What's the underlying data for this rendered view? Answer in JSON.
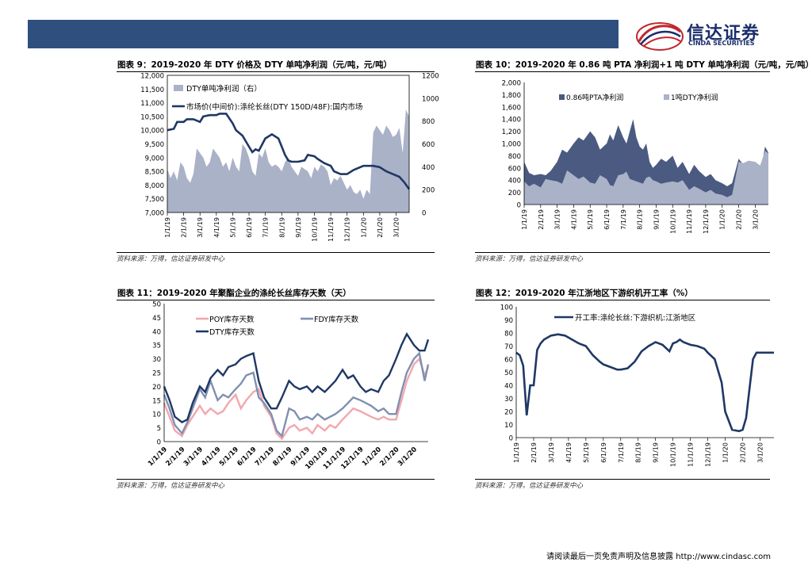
{
  "header": {
    "logo_cn": "信达证券",
    "logo_en": "CINDA SECURITIES"
  },
  "footer": {
    "text": "请阅读最后一页免责声明及信息披露 http://www.cindasc.com"
  },
  "source_text": "资料来源：万得，信达证券研发中心",
  "colors": {
    "header_bar": "#2f4f7f",
    "navy": "#1f3864",
    "bar_grey": "#aab2c8",
    "pta_dark": "#4a5a80",
    "poy_pink": "#f3a7ad",
    "fdy_grey": "#8090b0",
    "logo_red": "#c0282d"
  },
  "chart_data": [
    {
      "id": "fig9",
      "type": "area",
      "title": "图表 9：2019-2020 年 DTY 价格及 DTY 单吨净利润（元/吨，元/吨）",
      "left_ticks": [
        "12,000",
        "11,500",
        "11,000",
        "10,500",
        "10,000",
        "9,500",
        "9,000",
        "8,500",
        "8,000",
        "7,500",
        "7,000"
      ],
      "right_ticks": [
        "1200",
        "1000",
        "800",
        "600",
        "400",
        "200",
        "0"
      ],
      "ylim_left": [
        7000,
        12000
      ],
      "ylim_right": [
        0,
        1200
      ],
      "x_ticks": [
        "1/1/19",
        "2/1/19",
        "3/1/19",
        "4/1/19",
        "5/1/19",
        "6/1/19",
        "7/1/19",
        "8/1/19",
        "9/1/19",
        "10/1/19",
        "11/1/19",
        "12/1/19",
        "1/1/20",
        "2/1/20",
        "3/1/20"
      ],
      "x_positions": [
        0,
        1,
        2,
        3,
        4,
        5,
        6,
        7,
        8,
        9,
        10,
        11,
        12,
        13,
        14
      ],
      "x_max": 14.8,
      "legend": [
        "DTY单吨净利润（右）",
        "市场价(中间价):涤纶长丝(DTY 150D/48F):国内市场"
      ],
      "series": [
        {
          "name": "DTY单吨净利润（右）",
          "kind": "area",
          "axis": "right",
          "x": [
            0,
            0.2,
            0.4,
            0.6,
            0.8,
            1.0,
            1.2,
            1.4,
            1.6,
            1.8,
            2.0,
            2.2,
            2.4,
            2.6,
            2.8,
            3.0,
            3.2,
            3.4,
            3.6,
            3.8,
            4.0,
            4.2,
            4.4,
            4.6,
            4.8,
            5.0,
            5.2,
            5.4,
            5.6,
            5.8,
            6.0,
            6.2,
            6.4,
            6.6,
            6.8,
            7.0,
            7.2,
            7.4,
            7.6,
            7.8,
            8.0,
            8.2,
            8.4,
            8.6,
            8.8,
            9.0,
            9.2,
            9.4,
            9.6,
            9.8,
            10.0,
            10.2,
            10.4,
            10.6,
            10.8,
            11.0,
            11.2,
            11.4,
            11.6,
            11.8,
            12.0,
            12.2,
            12.4,
            12.6,
            12.8,
            13.0,
            13.2,
            13.4,
            13.6,
            13.8,
            14.0,
            14.2,
            14.4,
            14.6,
            14.8
          ],
          "values": [
            380,
            300,
            360,
            280,
            440,
            400,
            300,
            260,
            340,
            560,
            520,
            480,
            400,
            440,
            560,
            520,
            480,
            400,
            440,
            360,
            480,
            400,
            360,
            600,
            560,
            480,
            360,
            320,
            520,
            480,
            560,
            440,
            400,
            420,
            400,
            360,
            440,
            480,
            400,
            360,
            320,
            400,
            380,
            360,
            300,
            400,
            360,
            420,
            400,
            360,
            240,
            300,
            280,
            320,
            260,
            200,
            240,
            180,
            160,
            200,
            120,
            200,
            160,
            700,
            760,
            720,
            680,
            760,
            720,
            660,
            680,
            740,
            520,
            900,
            840
          ]
        },
        {
          "name": "市场价(中间价):涤纶长丝(DTY 150D/48F):国内市场",
          "kind": "line",
          "axis": "left",
          "x": [
            0,
            0.4,
            0.6,
            1.0,
            1.2,
            1.6,
            2.0,
            2.2,
            2.6,
            3.0,
            3.2,
            3.6,
            4.0,
            4.2,
            4.6,
            5.0,
            5.2,
            5.4,
            5.6,
            6.0,
            6.4,
            6.8,
            7.0,
            7.2,
            7.4,
            7.6,
            8.0,
            8.4,
            8.6,
            9.0,
            9.2,
            9.6,
            10.0,
            10.2,
            10.6,
            11.0,
            11.4,
            12.0,
            12.6,
            13.0,
            13.4,
            13.8,
            14.2,
            14.5,
            14.8
          ],
          "values": [
            10000,
            10050,
            10300,
            10300,
            10400,
            10400,
            10300,
            10500,
            10550,
            10550,
            10600,
            10600,
            10250,
            10000,
            9800,
            9400,
            9200,
            9300,
            9250,
            9700,
            9850,
            9700,
            9400,
            9100,
            8900,
            8850,
            8850,
            8900,
            9100,
            9050,
            8950,
            8800,
            8700,
            8500,
            8400,
            8400,
            8550,
            8700,
            8700,
            8650,
            8500,
            8400,
            8300,
            8100,
            7850
          ]
        }
      ]
    },
    {
      "id": "fig10",
      "type": "area",
      "title": "图表 10：2019-2020 年 0.86 吨 PTA 净利润+1 吨 DTY 单吨净利润（元/吨，元/吨）",
      "y_ticks": [
        "2,000",
        "1,800",
        "1,600",
        "1,400",
        "1,200",
        "1,000",
        "800",
        "600",
        "400",
        "200",
        "0"
      ],
      "ylim": [
        0,
        2000
      ],
      "x_ticks": [
        "1/1/19",
        "2/1/19",
        "3/1/19",
        "4/1/19",
        "5/1/19",
        "6/1/19",
        "7/1/19",
        "8/1/19",
        "9/1/19",
        "10/1/19",
        "11/1/19",
        "12/1/19",
        "1/1/20",
        "2/1/20",
        "3/1/20"
      ],
      "x_positions": [
        0,
        1,
        2,
        3,
        4,
        5,
        6,
        7,
        8,
        9,
        10,
        11,
        12,
        13,
        14
      ],
      "x_max": 14.8,
      "legend": [
        "0.86吨PTA净利润",
        "1吨DTY净利润"
      ],
      "series": [
        {
          "name": "0.86吨PTA净利润",
          "kind": "area",
          "x": [
            0,
            0.3,
            0.6,
            1.0,
            1.3,
            1.6,
            2.0,
            2.3,
            2.6,
            3.0,
            3.3,
            3.6,
            4.0,
            4.3,
            4.6,
            5.0,
            5.2,
            5.4,
            5.7,
            6.0,
            6.2,
            6.4,
            6.6,
            6.8,
            7.0,
            7.2,
            7.4,
            7.6,
            7.8,
            8.0,
            8.3,
            8.6,
            9.0,
            9.3,
            9.6,
            10.0,
            10.3,
            10.6,
            11.0,
            11.3,
            11.6,
            12.0,
            12.3,
            12.6,
            13.0,
            13.3,
            13.6,
            14.0,
            14.3,
            14.6,
            14.8
          ],
          "values": [
            700,
            520,
            480,
            500,
            480,
            550,
            700,
            900,
            850,
            1000,
            1100,
            1050,
            1200,
            1100,
            900,
            1000,
            1150,
            1050,
            1300,
            1100,
            1000,
            1200,
            1400,
            1100,
            950,
            900,
            1000,
            700,
            600,
            650,
            750,
            700,
            800,
            600,
            700,
            500,
            650,
            550,
            450,
            500,
            400,
            350,
            300,
            350,
            750,
            650,
            700,
            550,
            500,
            950,
            850
          ]
        },
        {
          "name": "1吨DTY净利润",
          "kind": "area",
          "x": [
            0,
            0.3,
            0.6,
            1.0,
            1.3,
            1.6,
            2.0,
            2.3,
            2.6,
            3.0,
            3.3,
            3.6,
            4.0,
            4.3,
            4.6,
            5.0,
            5.2,
            5.4,
            5.7,
            6.0,
            6.2,
            6.4,
            6.6,
            6.8,
            7.0,
            7.2,
            7.4,
            7.6,
            7.8,
            8.0,
            8.3,
            8.6,
            9.0,
            9.3,
            9.6,
            10.0,
            10.3,
            10.6,
            11.0,
            11.3,
            11.6,
            12.0,
            12.3,
            12.6,
            13.0,
            13.3,
            13.6,
            14.0,
            14.3,
            14.6,
            14.8
          ],
          "values": [
            380,
            300,
            340,
            280,
            420,
            400,
            380,
            340,
            560,
            480,
            420,
            460,
            360,
            340,
            480,
            420,
            320,
            300,
            480,
            500,
            540,
            420,
            400,
            380,
            360,
            340,
            440,
            460,
            400,
            380,
            340,
            360,
            380,
            360,
            400,
            240,
            300,
            260,
            200,
            240,
            180,
            160,
            120,
            160,
            700,
            680,
            720,
            700,
            640,
            880,
            840
          ]
        }
      ]
    },
    {
      "id": "fig11",
      "type": "line",
      "title": "图表 11：2019-2020 年聚酯企业的涤纶长丝库存天数（天）",
      "y_ticks": [
        "50",
        "45",
        "40",
        "35",
        "30",
        "25",
        "20",
        "15",
        "10",
        "5",
        "0"
      ],
      "ylim": [
        0,
        50
      ],
      "x_ticks": [
        "1/1/19",
        "2/1/19",
        "3/1/19",
        "4/1/19",
        "5/1/19",
        "6/1/19",
        "7/1/19",
        "8/1/19",
        "9/1/19",
        "10/1/19",
        "11/1/19",
        "12/1/19",
        "1/1/20",
        "2/1/20",
        "3/1/20"
      ],
      "x_positions": [
        0,
        1,
        2,
        3,
        4,
        5,
        6,
        7,
        8,
        9,
        10,
        11,
        12,
        13,
        14
      ],
      "x_max": 14.8,
      "legend": [
        "POY库存天数",
        "FDY库存天数",
        "DTY库存天数"
      ],
      "series": [
        {
          "name": "POY库存天数",
          "x": [
            0,
            0.3,
            0.6,
            1.0,
            1.3,
            1.6,
            2.0,
            2.3,
            2.6,
            3.0,
            3.3,
            3.6,
            4.0,
            4.3,
            4.6,
            5.0,
            5.3,
            5.6,
            6.0,
            6.3,
            6.6,
            7.0,
            7.3,
            7.6,
            8.0,
            8.3,
            8.6,
            9.0,
            9.3,
            9.6,
            10.0,
            10.3,
            10.6,
            11.0,
            11.3,
            11.6,
            12.0,
            12.3,
            12.6,
            13.0,
            13.3,
            13.6,
            14.0,
            14.3,
            14.6,
            14.8
          ],
          "values": [
            14,
            9,
            4,
            2,
            6,
            9,
            13,
            10,
            12,
            10,
            11,
            14,
            17,
            12,
            15,
            18,
            19,
            13,
            9,
            3,
            1,
            5,
            6,
            4,
            5,
            3,
            6,
            4,
            6,
            5,
            8,
            10,
            12,
            11,
            10,
            9,
            8,
            9,
            8,
            8,
            15,
            22,
            28,
            30,
            24,
            27
          ]
        },
        {
          "name": "FDY库存天数",
          "x": [
            0,
            0.3,
            0.6,
            1.0,
            1.3,
            1.6,
            2.0,
            2.3,
            2.6,
            3.0,
            3.3,
            3.6,
            4.0,
            4.3,
            4.6,
            5.0,
            5.3,
            5.6,
            6.0,
            6.3,
            6.6,
            7.0,
            7.3,
            7.6,
            8.0,
            8.3,
            8.6,
            9.0,
            9.3,
            9.6,
            10.0,
            10.3,
            10.6,
            11.0,
            11.3,
            11.6,
            12.0,
            12.3,
            12.6,
            13.0,
            13.3,
            13.6,
            14.0,
            14.3,
            14.6,
            14.8
          ],
          "values": [
            17,
            12,
            6,
            3,
            7,
            12,
            19,
            16,
            22,
            15,
            17,
            16,
            19,
            21,
            24,
            25,
            16,
            14,
            10,
            4,
            2,
            12,
            11,
            8,
            9,
            8,
            10,
            8,
            9,
            10,
            12,
            14,
            16,
            15,
            14,
            13,
            11,
            12,
            10,
            10,
            18,
            25,
            30,
            32,
            22,
            28
          ]
        },
        {
          "name": "DTY库存天数",
          "x": [
            0,
            0.3,
            0.6,
            1.0,
            1.3,
            1.6,
            2.0,
            2.3,
            2.6,
            3.0,
            3.3,
            3.6,
            4.0,
            4.3,
            4.6,
            5.0,
            5.3,
            5.6,
            6.0,
            6.3,
            6.6,
            7.0,
            7.3,
            7.6,
            8.0,
            8.3,
            8.6,
            9.0,
            9.3,
            9.6,
            10.0,
            10.3,
            10.6,
            11.0,
            11.3,
            11.6,
            12.0,
            12.3,
            12.6,
            13.0,
            13.3,
            13.6,
            14.0,
            14.3,
            14.6,
            14.8
          ],
          "values": [
            20,
            15,
            9,
            7,
            8,
            14,
            20,
            18,
            23,
            26,
            24,
            27,
            28,
            30,
            31,
            32,
            22,
            16,
            12,
            12,
            16,
            22,
            20,
            19,
            20,
            18,
            20,
            18,
            20,
            22,
            26,
            23,
            24,
            20,
            18,
            19,
            18,
            22,
            24,
            30,
            35,
            39,
            35,
            33,
            33,
            37
          ]
        }
      ]
    },
    {
      "id": "fig12",
      "type": "line",
      "title": "图表 12：2019-2020 年江浙地区下游织机开工率（%）",
      "y_ticks": [
        "100",
        "90",
        "80",
        "70",
        "60",
        "50",
        "40",
        "30",
        "20",
        "10",
        "0"
      ],
      "ylim": [
        0,
        100
      ],
      "x_ticks": [
        "1/1/19",
        "2/1/19",
        "3/1/19",
        "4/1/19",
        "5/1/19",
        "6/1/19",
        "7/1/19",
        "8/1/19",
        "9/1/19",
        "10/1/19",
        "11/1/19",
        "12/1/19",
        "1/1/20",
        "2/1/20",
        "3/1/20"
      ],
      "x_positions": [
        0,
        1,
        2,
        3,
        4,
        5,
        6,
        7,
        8,
        9,
        10,
        11,
        12,
        13,
        14
      ],
      "x_max": 14.8,
      "legend": [
        "开工率:涤纶长丝:下游织机:江浙地区"
      ],
      "series": [
        {
          "name": "开工率:涤纶长丝:下游织机:江浙地区",
          "x": [
            0,
            0.2,
            0.4,
            0.6,
            0.8,
            1.0,
            1.2,
            1.4,
            1.6,
            2.0,
            2.4,
            2.8,
            3.2,
            3.6,
            4.0,
            4.4,
            4.8,
            5.0,
            5.4,
            5.8,
            6.0,
            6.4,
            6.8,
            7.2,
            7.6,
            8.0,
            8.4,
            8.8,
            9.0,
            9.2,
            9.4,
            9.6,
            10.0,
            10.4,
            10.8,
            11.0,
            11.4,
            11.8,
            12.0,
            12.4,
            12.8,
            13.0,
            13.2,
            13.4,
            13.6,
            13.8,
            14.0,
            14.2,
            14.4,
            14.6,
            14.8
          ],
          "values": [
            65,
            63,
            55,
            17,
            40,
            40,
            67,
            72,
            75,
            78,
            79,
            78,
            75,
            72,
            70,
            63,
            58,
            56,
            54,
            52,
            52,
            53,
            58,
            66,
            70,
            73,
            71,
            66,
            72,
            73,
            75,
            73,
            71,
            70,
            68,
            65,
            60,
            42,
            20,
            6,
            5,
            6,
            15,
            38,
            60,
            65,
            65,
            65,
            65,
            65,
            65
          ]
        }
      ]
    }
  ]
}
